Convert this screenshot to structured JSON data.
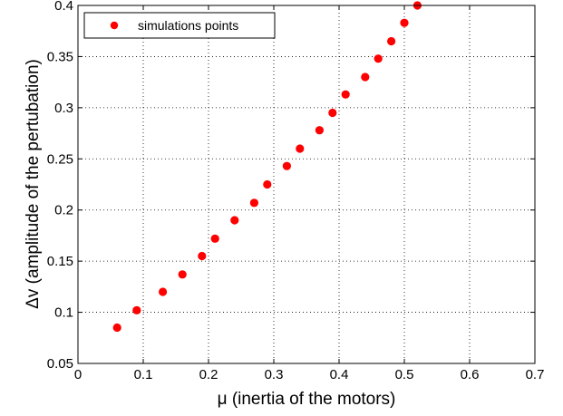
{
  "chart_data": {
    "type": "scatter",
    "title": "",
    "xlabel": "μ (inertia of the motors)",
    "ylabel": "Δv (amplitude of the pertubation)",
    "xlim": [
      0,
      0.7
    ],
    "ylim": [
      0.05,
      0.4
    ],
    "xticks": [
      "0",
      "0.1",
      "0.2",
      "0.3",
      "0.4",
      "0.5",
      "0.6",
      "0.7"
    ],
    "yticks": [
      "0.05",
      "0.1",
      "0.15",
      "0.2",
      "0.25",
      "0.3",
      "0.35",
      "0.4"
    ],
    "grid": true,
    "legend_position": "top-left",
    "series": [
      {
        "name": "simulations points",
        "color": "#ff0000",
        "marker": "circle",
        "points": [
          {
            "x": 0.06,
            "y": 0.085
          },
          {
            "x": 0.09,
            "y": 0.102
          },
          {
            "x": 0.13,
            "y": 0.12
          },
          {
            "x": 0.16,
            "y": 0.137
          },
          {
            "x": 0.19,
            "y": 0.155
          },
          {
            "x": 0.21,
            "y": 0.172
          },
          {
            "x": 0.24,
            "y": 0.19
          },
          {
            "x": 0.27,
            "y": 0.207
          },
          {
            "x": 0.29,
            "y": 0.225
          },
          {
            "x": 0.32,
            "y": 0.243
          },
          {
            "x": 0.34,
            "y": 0.26
          },
          {
            "x": 0.37,
            "y": 0.278
          },
          {
            "x": 0.39,
            "y": 0.295
          },
          {
            "x": 0.41,
            "y": 0.313
          },
          {
            "x": 0.44,
            "y": 0.33
          },
          {
            "x": 0.46,
            "y": 0.348
          },
          {
            "x": 0.48,
            "y": 0.365
          },
          {
            "x": 0.5,
            "y": 0.383
          },
          {
            "x": 0.52,
            "y": 0.4
          }
        ]
      }
    ]
  }
}
